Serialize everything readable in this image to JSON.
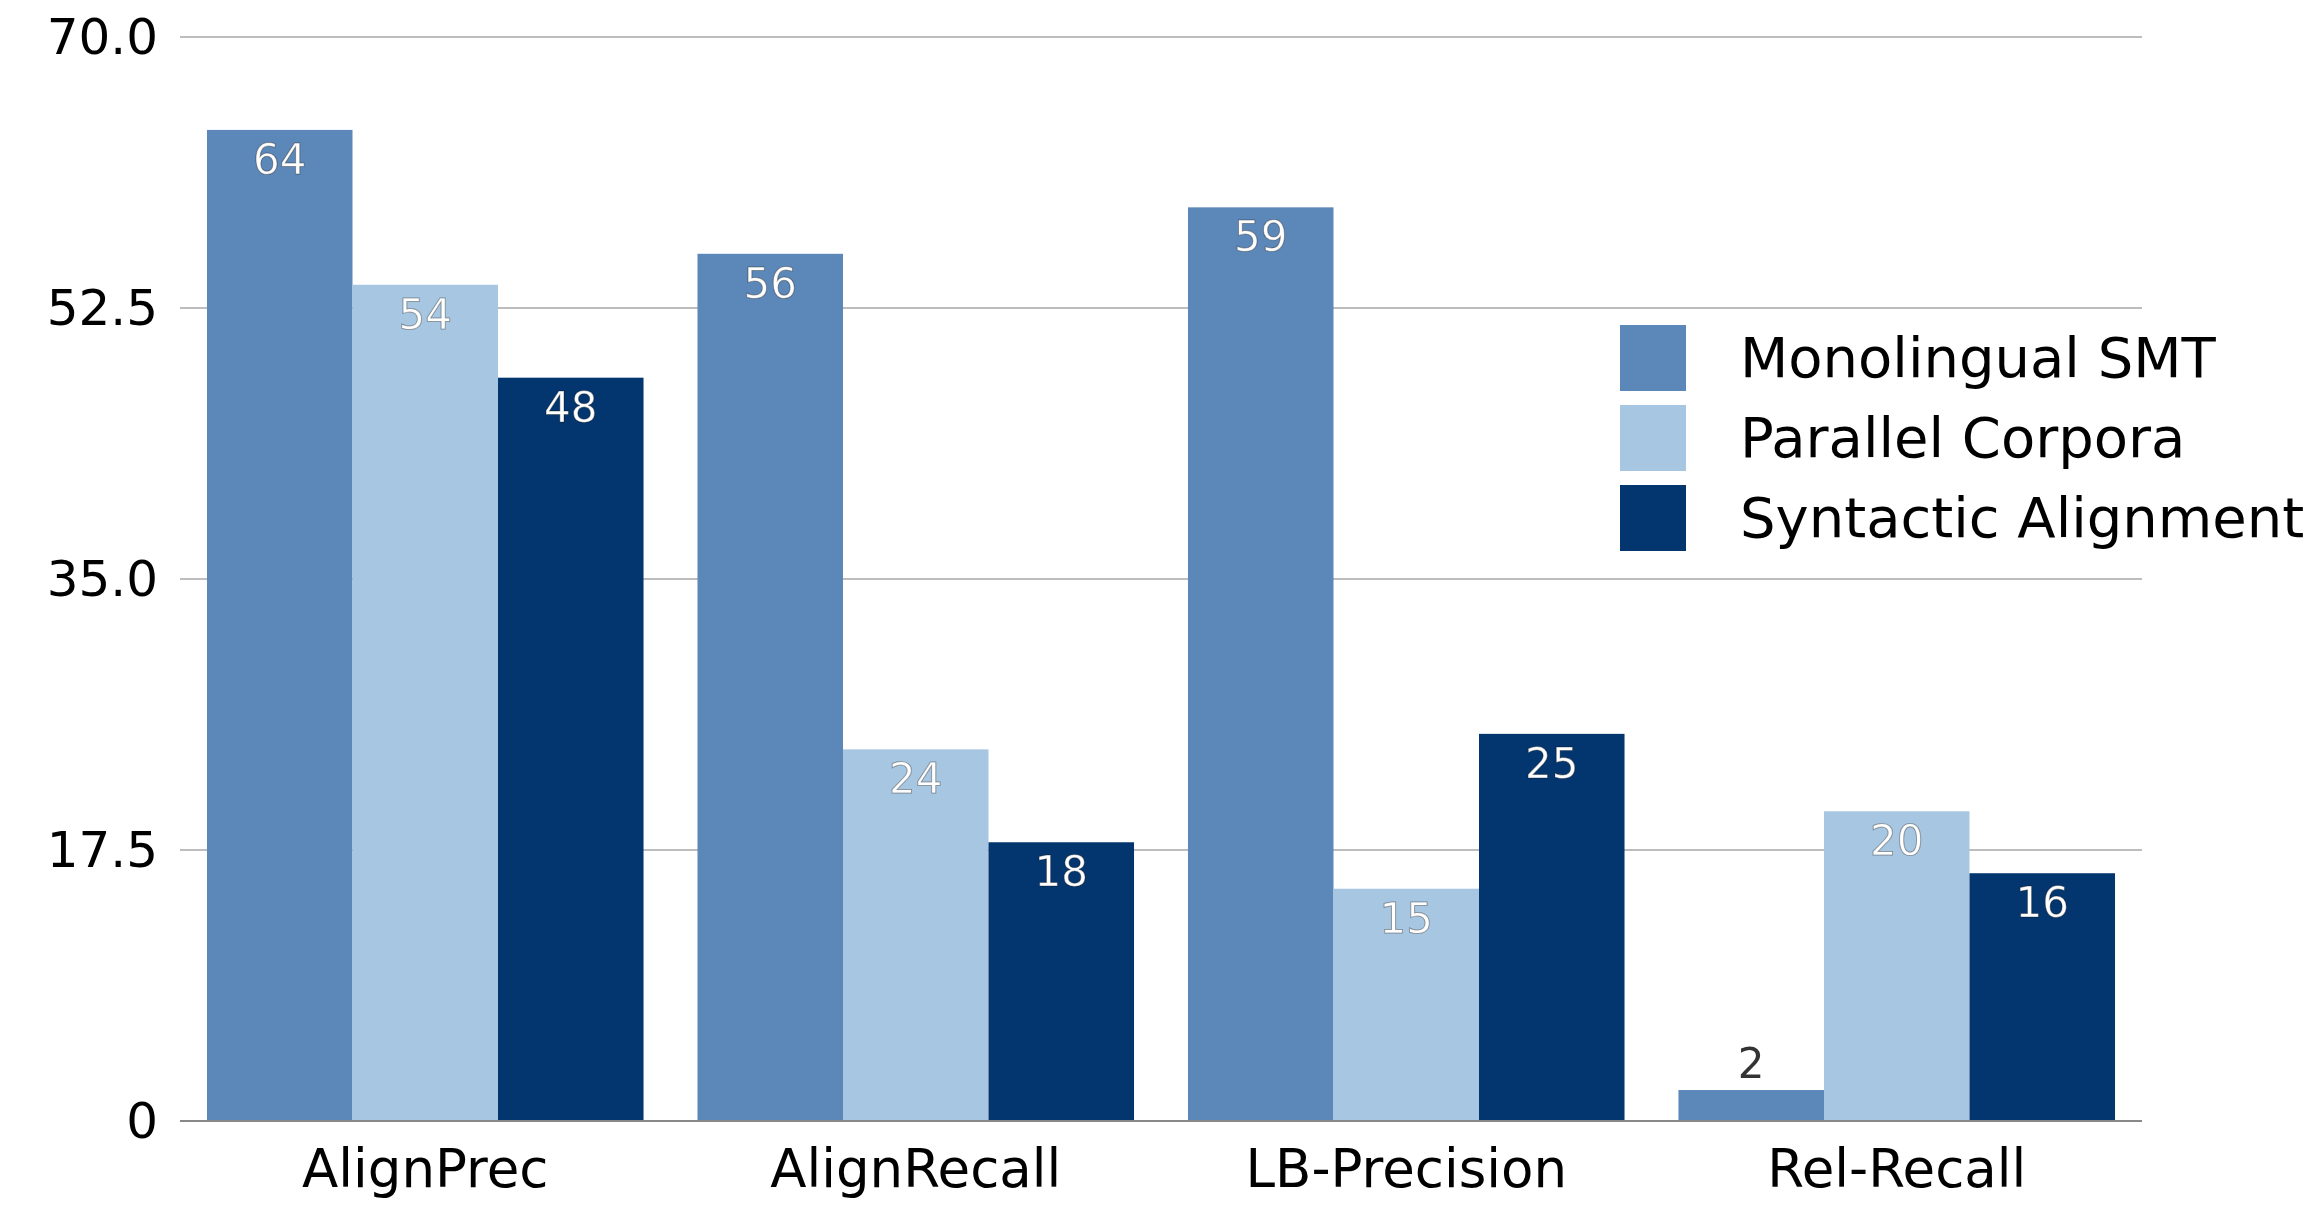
{
  "chart_data": {
    "type": "bar",
    "categories": [
      "AlignPrec",
      "AlignRecall",
      "LB-Precision",
      "Rel-Recall"
    ],
    "series": [
      {
        "name": "Monolingual SMT",
        "color": "#5b88b8",
        "values": [
          64,
          56,
          59,
          2
        ]
      },
      {
        "name": "Parallel Corpora",
        "color": "#a6c6e1",
        "values": [
          54,
          24,
          15,
          20
        ]
      },
      {
        "name": "Syntactic Alignment",
        "color": "#03366f",
        "values": [
          48,
          18,
          25,
          16
        ]
      }
    ],
    "ylim": [
      0,
      70
    ],
    "yticks": [
      0,
      17.5,
      {
        "value": 35,
        "label": "35.0"
      },
      52.5,
      {
        "value": 70,
        "label": "70.0"
      }
    ],
    "grid": "y",
    "legend": "right",
    "data_labels": true
  }
}
